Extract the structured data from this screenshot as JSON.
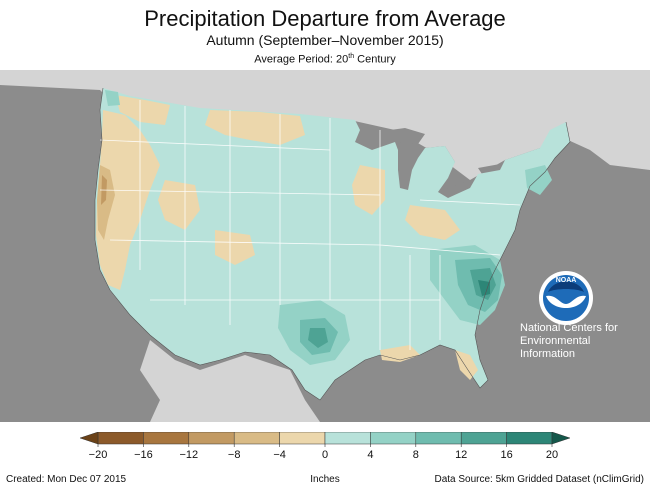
{
  "header": {
    "title": "Precipitation Departure from Average",
    "subtitle": "Autumn (September–November 2015)",
    "period_prefix": "Average Period: 20",
    "period_sup": "th",
    "period_suffix": " Century"
  },
  "logo": {
    "name": "NOAA",
    "lines": [
      "National Centers for",
      "Environmental",
      "Information"
    ]
  },
  "legend": {
    "unit": "Inches",
    "ticks": [
      "−20",
      "−16",
      "−12",
      "−8",
      "−4",
      "0",
      "4",
      "8",
      "12",
      "16",
      "20"
    ],
    "colors": [
      "#8c5a2a",
      "#a8763f",
      "#c29a63",
      "#d9bb86",
      "#ecd7ac",
      "#b8e2da",
      "#94d2c6",
      "#6fbcaf",
      "#4ea394",
      "#2d8677"
    ]
  },
  "footer": {
    "created": "Created: Mon Dec 07 2015",
    "source": "Data Source: 5km Gridded Dataset (nClimGrid)"
  },
  "colors": {
    "ocean": "#8c8c8c",
    "foreign_land": "#d4d4d4",
    "lakes": "#8c8c8c",
    "state_lines": "#ffffff"
  }
}
